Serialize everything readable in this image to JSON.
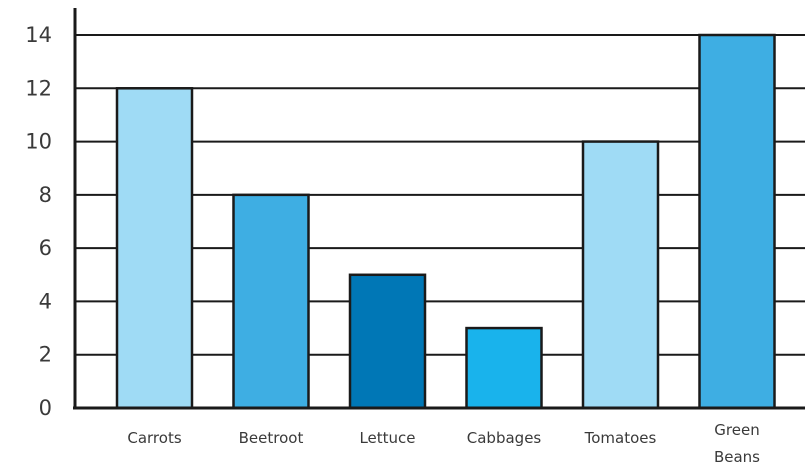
{
  "chart_data": {
    "type": "bar",
    "title": "",
    "xlabel": "",
    "ylabel": "",
    "ylim": [
      0,
      14
    ],
    "yticks": [
      0,
      2,
      4,
      6,
      8,
      10,
      12,
      14
    ],
    "grid": true,
    "categories": [
      [
        "Carrots"
      ],
      [
        "Beetroot"
      ],
      [
        "Lettuce"
      ],
      [
        "Cabbages"
      ],
      [
        "Tomatoes"
      ],
      [
        "Green",
        "Beans"
      ]
    ],
    "values": [
      12,
      8,
      5,
      3,
      10,
      14
    ],
    "colors": [
      "#9fdbf5",
      "#3eaee3",
      "#0077b6",
      "#19b3ec",
      "#9fdbf5",
      "#3eaee3"
    ]
  }
}
